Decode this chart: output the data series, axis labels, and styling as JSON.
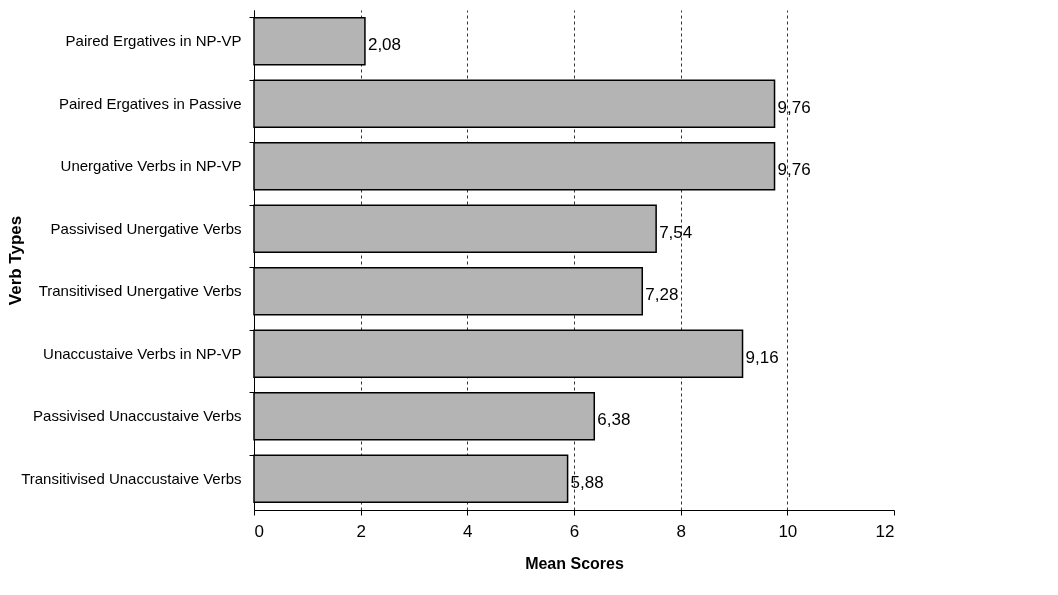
{
  "chart_data": {
    "type": "bar",
    "orientation": "horizontal",
    "xlabel": "Mean Scores",
    "ylabel": "Verb Types",
    "categories": [
      "Paired Ergatives in NP-VP",
      "Paired Ergatives in Passive",
      "Unergative Verbs in NP-VP",
      "Passivised Unergative Verbs",
      "Transitivised Unergative Verbs",
      "Unaccustaive Verbs in NP-VP",
      "Passivised Unaccustaive Verbs",
      "Transitivised Unaccustaive Verbs"
    ],
    "values": [
      2.08,
      9.76,
      9.76,
      7.54,
      7.28,
      9.16,
      6.38,
      5.88
    ],
    "value_labels": [
      "2,08",
      "9,76",
      "9,76",
      "7,54",
      "7,28",
      "9,16",
      "6,38",
      "5,88"
    ],
    "color": "#b4b4b4",
    "xlim": [
      0,
      12
    ],
    "xticks": [
      0,
      2,
      4,
      6,
      8,
      10,
      12
    ],
    "grid": "x"
  }
}
